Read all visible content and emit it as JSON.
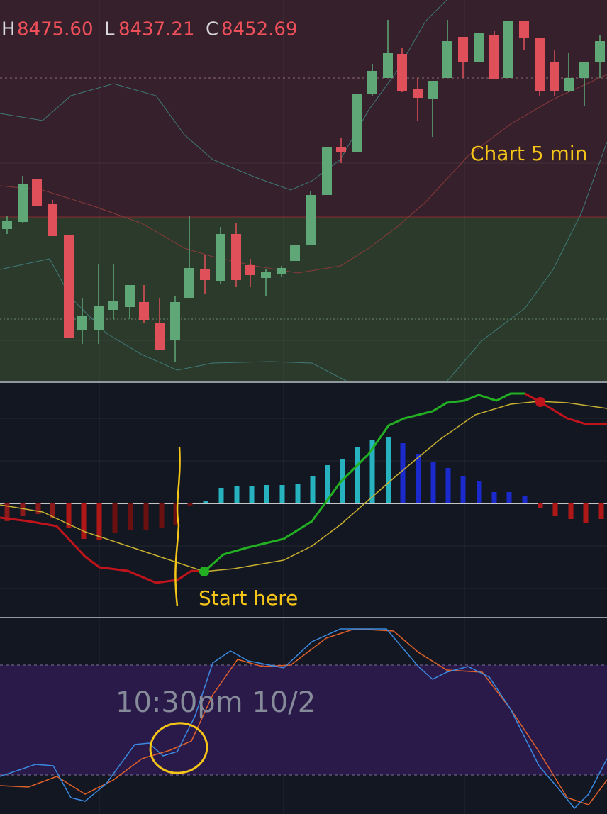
{
  "header": {
    "h_label": "H",
    "h_value": "8475.60",
    "l_label": "L",
    "l_value": "8437.21",
    "c_label": "C",
    "c_value": "8452.69"
  },
  "annotations": {
    "chart_label": "Chart 5 min",
    "start_note": "Start here",
    "timestamp": "10:30pm 10/2"
  }
}
